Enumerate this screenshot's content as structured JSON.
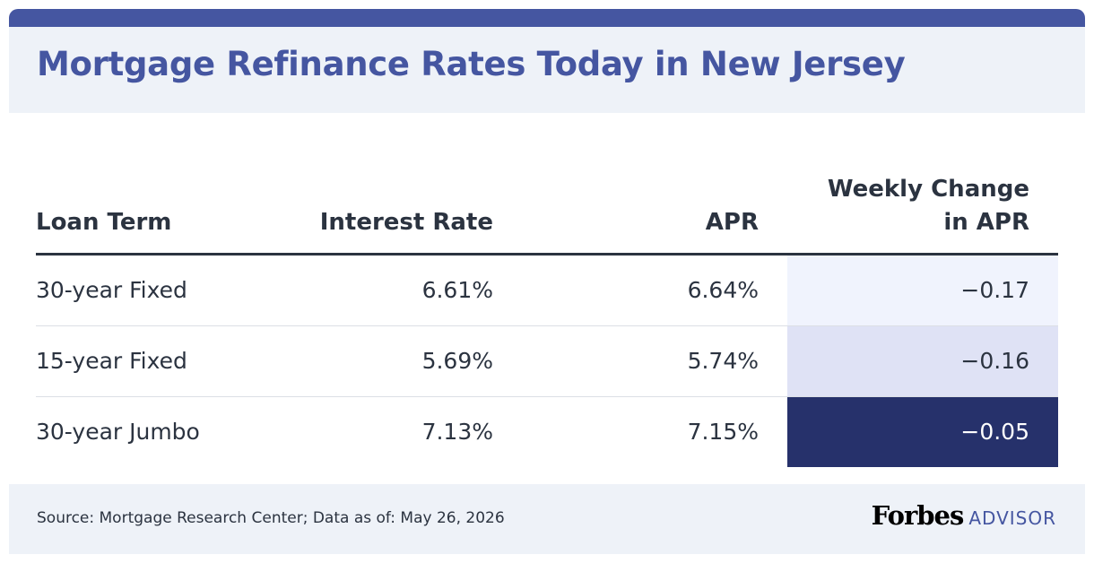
{
  "title": "Mortgage Refinance Rates Today in New Jersey",
  "colors": {
    "accent": "#4556a1",
    "header_bg": "#eef2f8",
    "change_light": "#f0f3fd",
    "change_mid": "#dfe2f5",
    "change_dark": "#26316b"
  },
  "chart_data": {
    "type": "table",
    "columns": [
      "Loan Term",
      "Interest Rate",
      "APR",
      "Weekly Change in APR"
    ],
    "column_header_lines": {
      "term": "Loan Term",
      "rate": "Interest Rate",
      "apr": "APR",
      "change_line1": "Weekly Change",
      "change_line2": "in APR"
    },
    "rows": [
      {
        "term": "30-year Fixed",
        "rate": "6.61%",
        "apr": "6.64%",
        "change": "−0.17",
        "change_value": -0.17
      },
      {
        "term": "15-year Fixed",
        "rate": "5.69%",
        "apr": "5.74%",
        "change": "−0.16",
        "change_value": -0.16
      },
      {
        "term": "30-year Jumbo",
        "rate": "7.13%",
        "apr": "7.15%",
        "change": "−0.05",
        "change_value": -0.05
      }
    ]
  },
  "footer": {
    "source": "Source: Mortgage Research Center; Data as of: May 26, 2026",
    "logo_brand": "Forbes",
    "logo_sub": "ADVISOR"
  }
}
